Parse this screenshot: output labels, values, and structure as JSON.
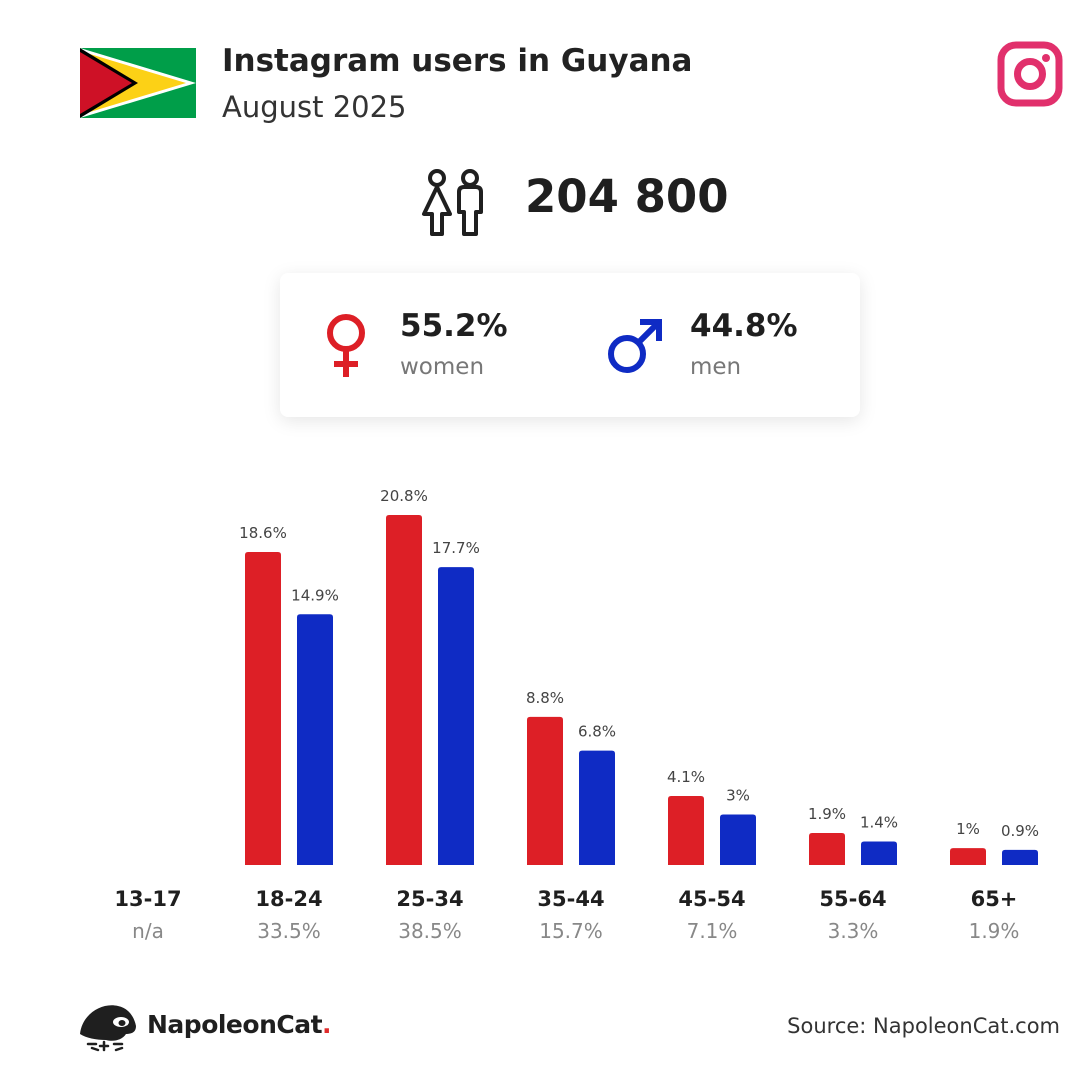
{
  "header": {
    "title": "Instagram users in Guyana",
    "subtitle": "August 2025"
  },
  "icons": {
    "flag": "guyana-flag-icon",
    "platform": "instagram-icon",
    "users": "users-icon",
    "women": "female-symbol-icon",
    "men": "male-symbol-icon",
    "logo": "napoleoncat-logo-icon"
  },
  "total": {
    "value": "204 800"
  },
  "gender": {
    "women": {
      "pct": "55.2%",
      "label": "women"
    },
    "men": {
      "pct": "44.8%",
      "label": "men"
    }
  },
  "colors": {
    "women": "#dd1f26",
    "men": "#0f2bc4",
    "instagram": "#e1306c"
  },
  "chart_data": {
    "type": "bar",
    "categories": [
      "13-17",
      "18-24",
      "25-34",
      "35-44",
      "45-54",
      "55-64",
      "65+"
    ],
    "group_totals": [
      "n/a",
      "33.5%",
      "38.5%",
      "15.7%",
      "7.1%",
      "3.3%",
      "1.9%"
    ],
    "series": [
      {
        "name": "women",
        "values": [
          null,
          18.6,
          20.8,
          8.8,
          4.1,
          1.9,
          1.0
        ],
        "labels": [
          "",
          "18.6%",
          "20.8%",
          "8.8%",
          "4.1%",
          "1.9%",
          "1%"
        ]
      },
      {
        "name": "men",
        "values": [
          null,
          14.9,
          17.7,
          6.8,
          3.0,
          1.4,
          0.9
        ],
        "labels": [
          "",
          "14.9%",
          "17.7%",
          "6.8%",
          "3%",
          "1.4%",
          "0.9%"
        ]
      }
    ],
    "ylim": [
      0,
      20.8
    ],
    "grid": false,
    "legend": "none"
  },
  "footer": {
    "brand": "NapoleonCat",
    "brand_dot": ".",
    "source": "Source: NapoleonCat.com"
  }
}
